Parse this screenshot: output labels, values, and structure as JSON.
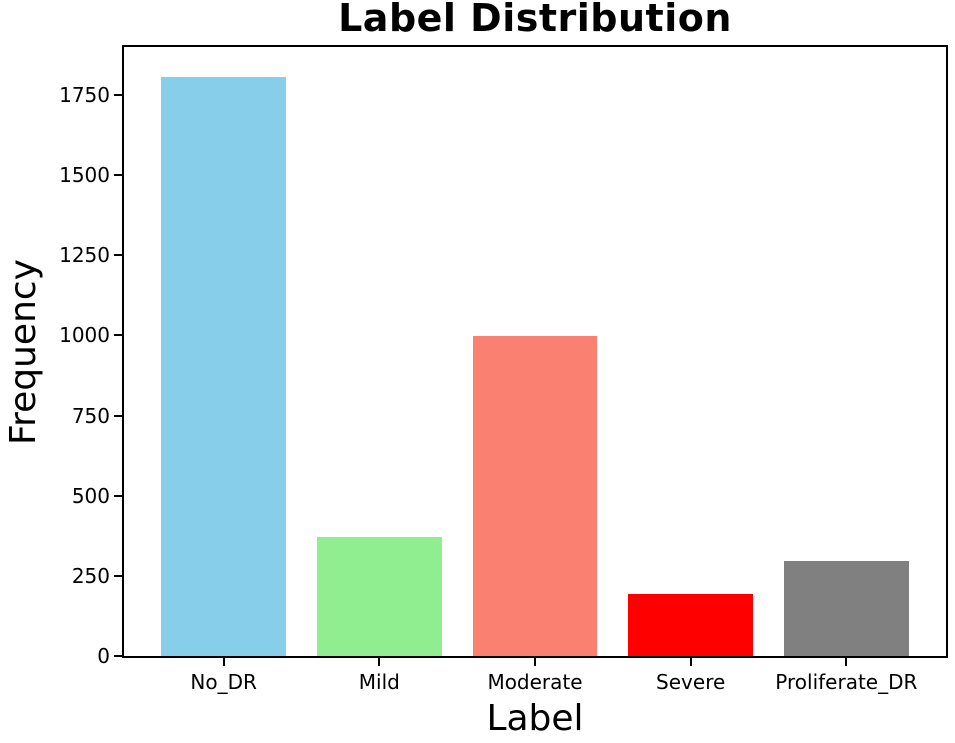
{
  "chart_data": {
    "type": "bar",
    "title": "Label Distribution",
    "xlabel": "Label",
    "ylabel": "Frequency",
    "categories": [
      "No_DR",
      "Mild",
      "Moderate",
      "Severe",
      "Proliferate_DR"
    ],
    "values": [
      1805,
      370,
      999,
      193,
      295
    ],
    "bar_colors": [
      "#87CEEB",
      "#90EE90",
      "#FA8072",
      "#FF0000",
      "#808080"
    ],
    "ylim": [
      0,
      1900
    ],
    "yticks": [
      0,
      250,
      500,
      750,
      1000,
      1250,
      1500,
      1750
    ],
    "grid": false,
    "legend": "none",
    "background_color": "#FFFFFF",
    "axis_color": "#000000",
    "text_color": "#000000"
  }
}
